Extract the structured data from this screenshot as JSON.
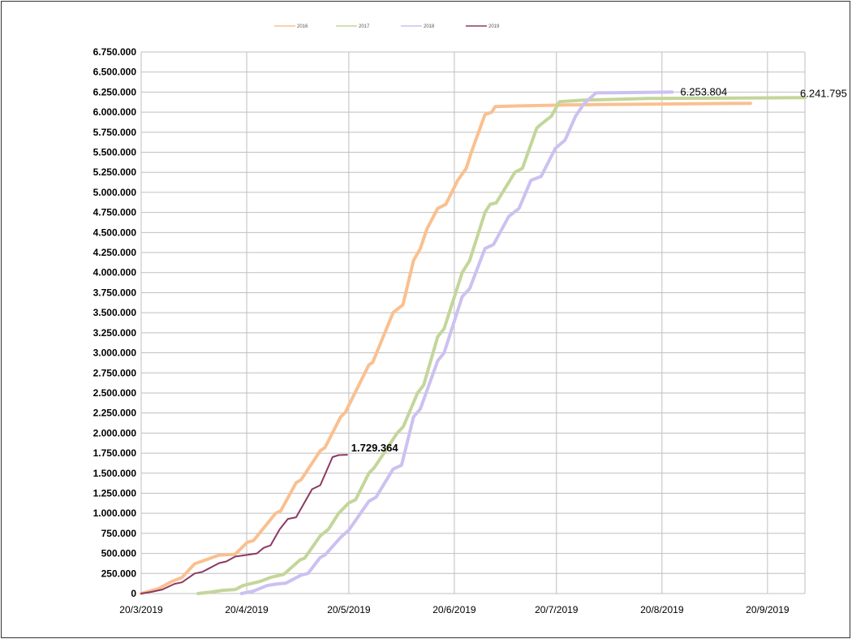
{
  "chart_data": {
    "type": "line",
    "title": "",
    "xlabel": "",
    "ylabel": "",
    "x_unit": "days since 20/3/2019",
    "xlim": [
      0,
      195
    ],
    "ylim": [
      0,
      6750000
    ],
    "grid": true,
    "legend_position": "top",
    "x_ticks": [
      {
        "day": 0,
        "label": "20/3/2019"
      },
      {
        "day": 31,
        "label": "20/4/2019"
      },
      {
        "day": 61,
        "label": "20/5/2019"
      },
      {
        "day": 92,
        "label": "20/6/2019"
      },
      {
        "day": 122,
        "label": "20/7/2019"
      },
      {
        "day": 153,
        "label": "20/8/2019"
      },
      {
        "day": 184,
        "label": "20/9/2019"
      }
    ],
    "y_tick_step": 250000,
    "series": [
      {
        "name": "2016",
        "color": "#fac090",
        "width": 4,
        "points": [
          [
            0,
            0
          ],
          [
            5,
            60
          ],
          [
            9,
            150
          ],
          [
            12,
            200
          ],
          [
            15.7,
            370
          ],
          [
            19,
            420
          ],
          [
            22.9,
            480
          ],
          [
            27.6,
            490
          ],
          [
            31.2,
            640
          ],
          [
            33,
            660
          ],
          [
            39.5,
            1000
          ],
          [
            41,
            1030
          ],
          [
            45.5,
            1380
          ],
          [
            47,
            1420
          ],
          [
            52.6,
            1780
          ],
          [
            54,
            1820
          ],
          [
            58.6,
            2200
          ],
          [
            60,
            2260
          ],
          [
            66.9,
            2850
          ],
          [
            68,
            2880
          ],
          [
            74,
            3500
          ],
          [
            76.9,
            3600
          ],
          [
            80,
            4150
          ],
          [
            82,
            4300
          ],
          [
            84,
            4550
          ],
          [
            87.1,
            4800
          ],
          [
            89.5,
            4850
          ],
          [
            93,
            5150
          ],
          [
            95.5,
            5300
          ],
          [
            97,
            5500
          ],
          [
            101,
            5970
          ],
          [
            103,
            6000
          ],
          [
            104,
            6070
          ],
          [
            113,
            6080
          ],
          [
            125,
            6090
          ],
          [
            149,
            6100
          ],
          [
            179,
            6110
          ]
        ]
      },
      {
        "name": "2017",
        "color": "#c3d69b",
        "width": 4,
        "points": [
          [
            16.7,
            0
          ],
          [
            20,
            15
          ],
          [
            24,
            40
          ],
          [
            27.6,
            50
          ],
          [
            30,
            100
          ],
          [
            34.8,
            150
          ],
          [
            38,
            200
          ],
          [
            41.9,
            240
          ],
          [
            46.7,
            420
          ],
          [
            48,
            440
          ],
          [
            52.6,
            720
          ],
          [
            55,
            800
          ],
          [
            58,
            1000
          ],
          [
            61,
            1130
          ],
          [
            63,
            1170
          ],
          [
            66.9,
            1500
          ],
          [
            68.5,
            1570
          ],
          [
            75.2,
            2000
          ],
          [
            77,
            2080
          ],
          [
            81.2,
            2500
          ],
          [
            83,
            2600
          ],
          [
            87.1,
            3200
          ],
          [
            89,
            3300
          ],
          [
            94.3,
            4000
          ],
          [
            96.5,
            4150
          ],
          [
            101,
            4750
          ],
          [
            102.5,
            4850
          ],
          [
            104.3,
            4870
          ],
          [
            109.8,
            5250
          ],
          [
            112,
            5300
          ],
          [
            116.2,
            5800
          ],
          [
            117.5,
            5850
          ],
          [
            120.5,
            5950
          ],
          [
            122.9,
            6130
          ],
          [
            130,
            6150
          ],
          [
            149,
            6170
          ],
          [
            195,
            6180
          ]
        ]
      },
      {
        "name": "2018",
        "color": "#ccc1f0",
        "width": 4,
        "points": [
          [
            29.5,
            0
          ],
          [
            33,
            30
          ],
          [
            37,
            100
          ],
          [
            40,
            120
          ],
          [
            42.5,
            130
          ],
          [
            47,
            230
          ],
          [
            49,
            250
          ],
          [
            52.6,
            450
          ],
          [
            54,
            480
          ],
          [
            58.6,
            700
          ],
          [
            61,
            790
          ],
          [
            66.9,
            1150
          ],
          [
            69,
            1200
          ],
          [
            74,
            1550
          ],
          [
            76.5,
            1600
          ],
          [
            80,
            2200
          ],
          [
            82,
            2300
          ],
          [
            87.1,
            2900
          ],
          [
            89,
            3000
          ],
          [
            94.3,
            3700
          ],
          [
            96.5,
            3800
          ],
          [
            101,
            4300
          ],
          [
            103.5,
            4350
          ],
          [
            108,
            4700
          ],
          [
            111,
            4800
          ],
          [
            114.5,
            5150
          ],
          [
            117.5,
            5200
          ],
          [
            121.7,
            5550
          ],
          [
            124.5,
            5650
          ],
          [
            127.6,
            5950
          ],
          [
            130,
            6100
          ],
          [
            133.6,
            6240
          ],
          [
            156,
            6250
          ]
        ]
      },
      {
        "name": "2019",
        "color": "#8b3a62",
        "width": 2,
        "points": [
          [
            0,
            0
          ],
          [
            3,
            20
          ],
          [
            6.2,
            50
          ],
          [
            9.8,
            120
          ],
          [
            12,
            140
          ],
          [
            15.7,
            250
          ],
          [
            18,
            270
          ],
          [
            22.9,
            380
          ],
          [
            25,
            400
          ],
          [
            27.6,
            460
          ],
          [
            32.4,
            490
          ],
          [
            34,
            500
          ],
          [
            36,
            570
          ],
          [
            38,
            600
          ],
          [
            40.7,
            800
          ],
          [
            43.1,
            930
          ],
          [
            45.5,
            950
          ],
          [
            50.2,
            1300
          ],
          [
            52.6,
            1350
          ],
          [
            56.2,
            1700
          ],
          [
            58,
            1725
          ],
          [
            60.5,
            1730
          ]
        ]
      }
    ],
    "annotations": [
      {
        "series": "2019",
        "text": "1.729.364"
      },
      {
        "series": "2018",
        "text": "6.253.804"
      },
      {
        "series": "2017",
        "text": "6.241.795"
      }
    ]
  }
}
